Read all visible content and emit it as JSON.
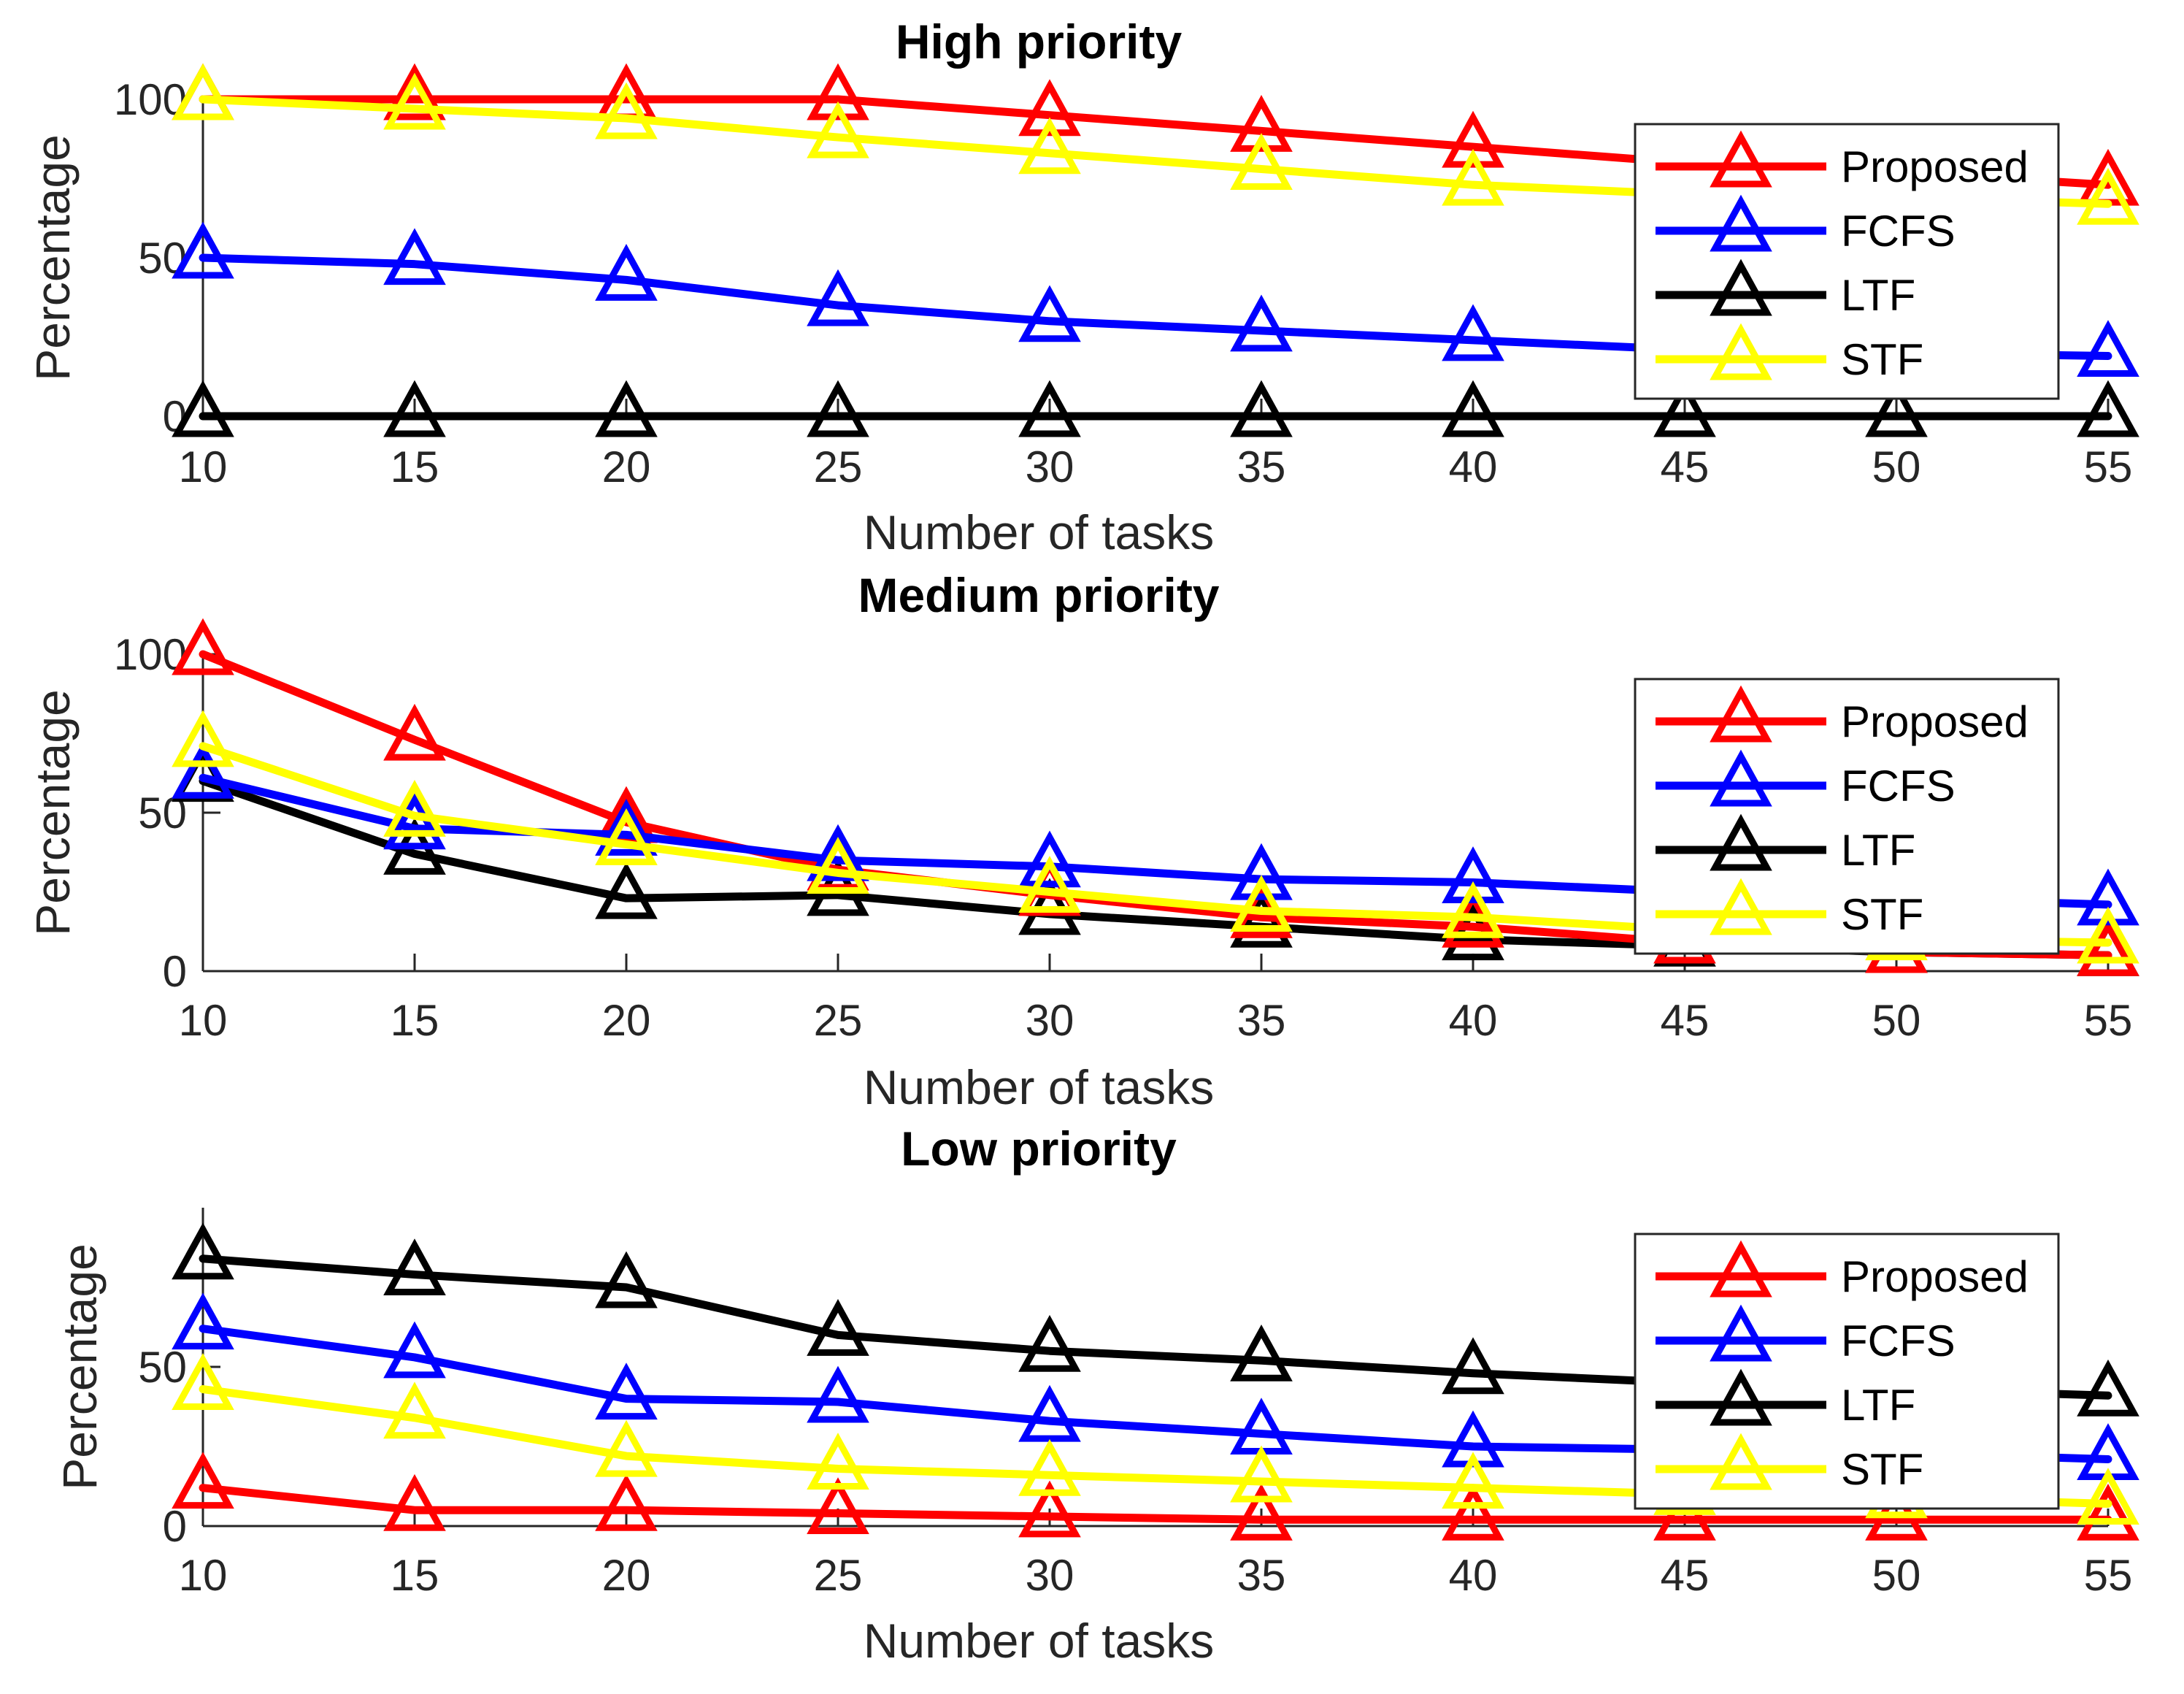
{
  "chart_data": [
    {
      "type": "line",
      "title": "High priority",
      "xlabel": "Number of tasks",
      "ylabel": "Percentage",
      "x": [
        10,
        15,
        20,
        25,
        30,
        35,
        40,
        45,
        50,
        55
      ],
      "xlim": [
        10,
        55
      ],
      "ylim": [
        0,
        100
      ],
      "yticks": [
        0,
        50,
        100
      ],
      "legend_position": "top-right",
      "series": [
        {
          "name": "Proposed",
          "color": "#ff0000",
          "values": [
            100,
            100,
            100,
            100,
            95,
            90,
            85,
            80,
            77,
            73
          ]
        },
        {
          "name": "FCFS",
          "color": "#0000ff",
          "values": [
            50,
            48,
            43,
            35,
            30,
            27,
            24,
            21,
            20,
            19
          ]
        },
        {
          "name": "LTF",
          "color": "#000000",
          "values": [
            0,
            0,
            0,
            0,
            0,
            0,
            0,
            0,
            0,
            0
          ]
        },
        {
          "name": "STF",
          "color": "#ffff00",
          "values": [
            100,
            97,
            94,
            88,
            83,
            78,
            73,
            70,
            69,
            67
          ]
        }
      ]
    },
    {
      "type": "line",
      "title": "Medium priority",
      "xlabel": "Number of tasks",
      "ylabel": "Percentage",
      "x": [
        10,
        15,
        20,
        25,
        30,
        35,
        40,
        45,
        50,
        55
      ],
      "xlim": [
        10,
        55
      ],
      "ylim": [
        0,
        100
      ],
      "yticks": [
        0,
        50,
        100
      ],
      "legend_position": "top-right",
      "series": [
        {
          "name": "Proposed",
          "color": "#ff0000",
          "values": [
            100,
            73,
            47,
            32,
            24,
            17,
            14,
            9,
            6,
            5
          ]
        },
        {
          "name": "FCFS",
          "color": "#0000ff",
          "values": [
            61,
            45,
            43,
            35,
            33,
            29,
            28,
            25,
            23,
            21
          ]
        },
        {
          "name": "LTF",
          "color": "#000000",
          "values": [
            60,
            37,
            23,
            24,
            18,
            14,
            10,
            8,
            6,
            5
          ]
        },
        {
          "name": "STF",
          "color": "#ffff00",
          "values": [
            71,
            49,
            40,
            31,
            25,
            19,
            17,
            13,
            10,
            9
          ]
        }
      ]
    },
    {
      "type": "line",
      "title": "Low priority",
      "xlabel": "Number of tasks",
      "ylabel": "Percentage",
      "x": [
        10,
        15,
        20,
        25,
        30,
        35,
        40,
        45,
        50,
        55
      ],
      "xlim": [
        10,
        55
      ],
      "ylim": [
        0,
        100
      ],
      "yticks": [
        0,
        50
      ],
      "legend_position": "top-right",
      "series": [
        {
          "name": "Proposed",
          "color": "#ff0000",
          "values": [
            12,
            5,
            5,
            4,
            3,
            2,
            2,
            2,
            2,
            2
          ]
        },
        {
          "name": "FCFS",
          "color": "#0000ff",
          "values": [
            62,
            53,
            40,
            39,
            33,
            29,
            25,
            24,
            23,
            21
          ]
        },
        {
          "name": "LTF",
          "color": "#000000",
          "values": [
            84,
            79,
            75,
            60,
            55,
            52,
            48,
            45,
            43,
            41
          ]
        },
        {
          "name": "STF",
          "color": "#ffff00",
          "values": [
            43,
            34,
            22,
            18,
            16,
            14,
            12,
            10,
            9,
            7
          ]
        }
      ]
    }
  ]
}
